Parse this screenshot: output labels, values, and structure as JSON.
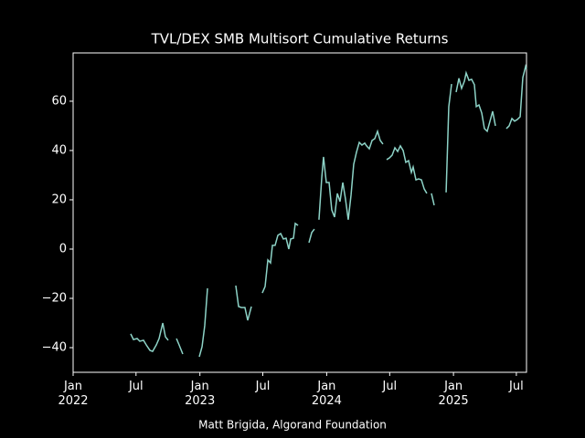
{
  "chart_data": {
    "type": "line",
    "title": "TVL/DEX SMB Multisort Cumulative Returns",
    "caption": "Matt Brigida, Algorand Foundation",
    "color": "#8dd3c7",
    "xlim": [
      2022.0,
      2025.576
    ],
    "ylim": [
      -50,
      79.6
    ],
    "xticks": [
      {
        "value": 2022.0,
        "label": "Jan\n2022"
      },
      {
        "value": 2022.496,
        "label": "Jul"
      },
      {
        "value": 2023.0,
        "label": "Jan\n2023"
      },
      {
        "value": 2023.496,
        "label": "Jul"
      },
      {
        "value": 2024.0,
        "label": "Jan\n2024"
      },
      {
        "value": 2024.497,
        "label": "Jul"
      },
      {
        "value": 2025.0,
        "label": "Jan\n2025"
      },
      {
        "value": 2025.496,
        "label": "Jul"
      }
    ],
    "yticks": [
      {
        "value": -40,
        "label": "−40"
      },
      {
        "value": -20,
        "label": "−20"
      },
      0,
      20,
      40,
      60
    ],
    "x": [
      2022.454,
      2022.476,
      2022.505,
      2022.526,
      2022.555,
      2022.577,
      2022.606,
      2022.627,
      2022.656,
      2022.678,
      2022.707,
      2022.728,
      2022.75,
      null,
      2022.815,
      2022.836,
      2022.865,
      null,
      2022.995,
      2023.017,
      2023.038,
      2023.06,
      null,
      2023.283,
      2023.305,
      2023.327,
      2023.355,
      2023.377,
      2023.406,
      null,
      2023.492,
      2023.514,
      2023.536,
      2023.557,
      2023.572,
      2023.593,
      2023.615,
      2023.637,
      2023.658,
      2023.68,
      2023.701,
      2023.716,
      2023.738,
      2023.752,
      2023.774,
      null,
      2023.86,
      2023.882,
      2023.903,
      null,
      2023.939,
      2023.961,
      2023.975,
      2023.997,
      2024.019,
      2024.04,
      2024.062,
      2024.084,
      2024.105,
      2024.127,
      2024.148,
      2024.17,
      2024.192,
      2024.213,
      2024.235,
      2024.257,
      2024.278,
      2024.3,
      2024.314,
      2024.336,
      2024.358,
      2024.379,
      2024.401,
      2024.422,
      2024.444,
      null,
      2024.473,
      2024.495,
      2024.516,
      2024.538,
      2024.56,
      2024.581,
      2024.603,
      2024.624,
      2024.646,
      2024.668,
      2024.682,
      2024.704,
      2024.725,
      2024.747,
      2024.769,
      2024.79,
      null,
      2024.826,
      2024.848,
      null,
      2024.942,
      2024.963,
      2024.985,
      null,
      2025.021,
      2025.043,
      2025.064,
      2025.086,
      2025.1,
      2025.122,
      2025.143,
      2025.165,
      2025.18,
      2025.201,
      2025.223,
      2025.244,
      2025.266,
      2025.288,
      2025.309,
      2025.331,
      null,
      2025.417,
      2025.439,
      2025.461,
      2025.482,
      2025.504,
      2025.526,
      2025.547,
      2025.569,
      2025.575
    ],
    "values": [
      -34.4,
      -36.7,
      -36.3,
      -37.4,
      -37.0,
      -38.9,
      -41.1,
      -41.5,
      -38.9,
      -36.3,
      -30.0,
      -35.6,
      -37.0,
      null,
      -36.3,
      -38.9,
      -42.6,
      null,
      -43.7,
      -39.6,
      -31.1,
      -15.9,
      null,
      -14.8,
      -23.3,
      -23.7,
      -23.7,
      -28.9,
      -23.3,
      null,
      -17.8,
      -15.2,
      -4.4,
      -5.6,
      1.5,
      1.5,
      5.6,
      6.3,
      4.1,
      4.4,
      0,
      4.1,
      4.4,
      10.4,
      9.6,
      null,
      2.6,
      6.7,
      8.1,
      null,
      11.9,
      28.9,
      37.4,
      27.0,
      27.0,
      15.9,
      13.0,
      22.6,
      19.3,
      27.0,
      20.4,
      11.9,
      21.9,
      34.4,
      39.3,
      43.3,
      42.2,
      43.0,
      41.9,
      40.7,
      44.1,
      44.8,
      47.8,
      44.1,
      42.6,
      null,
      36.3,
      37.0,
      38.1,
      41.1,
      39.6,
      41.9,
      40.0,
      35.2,
      35.9,
      31.1,
      33.3,
      28.1,
      28.5,
      28.1,
      24.4,
      22.6,
      null,
      22.6,
      17.8,
      null,
      23.0,
      57.8,
      67.0,
      null,
      63.7,
      69.3,
      65.2,
      68.1,
      71.5,
      68.5,
      68.9,
      66.7,
      57.8,
      58.5,
      55.2,
      48.9,
      47.8,
      51.9,
      55.9,
      50.0,
      null,
      48.9,
      50.0,
      53.0,
      51.9,
      52.6,
      53.7,
      69.6,
      74.1,
      73.0
    ]
  }
}
